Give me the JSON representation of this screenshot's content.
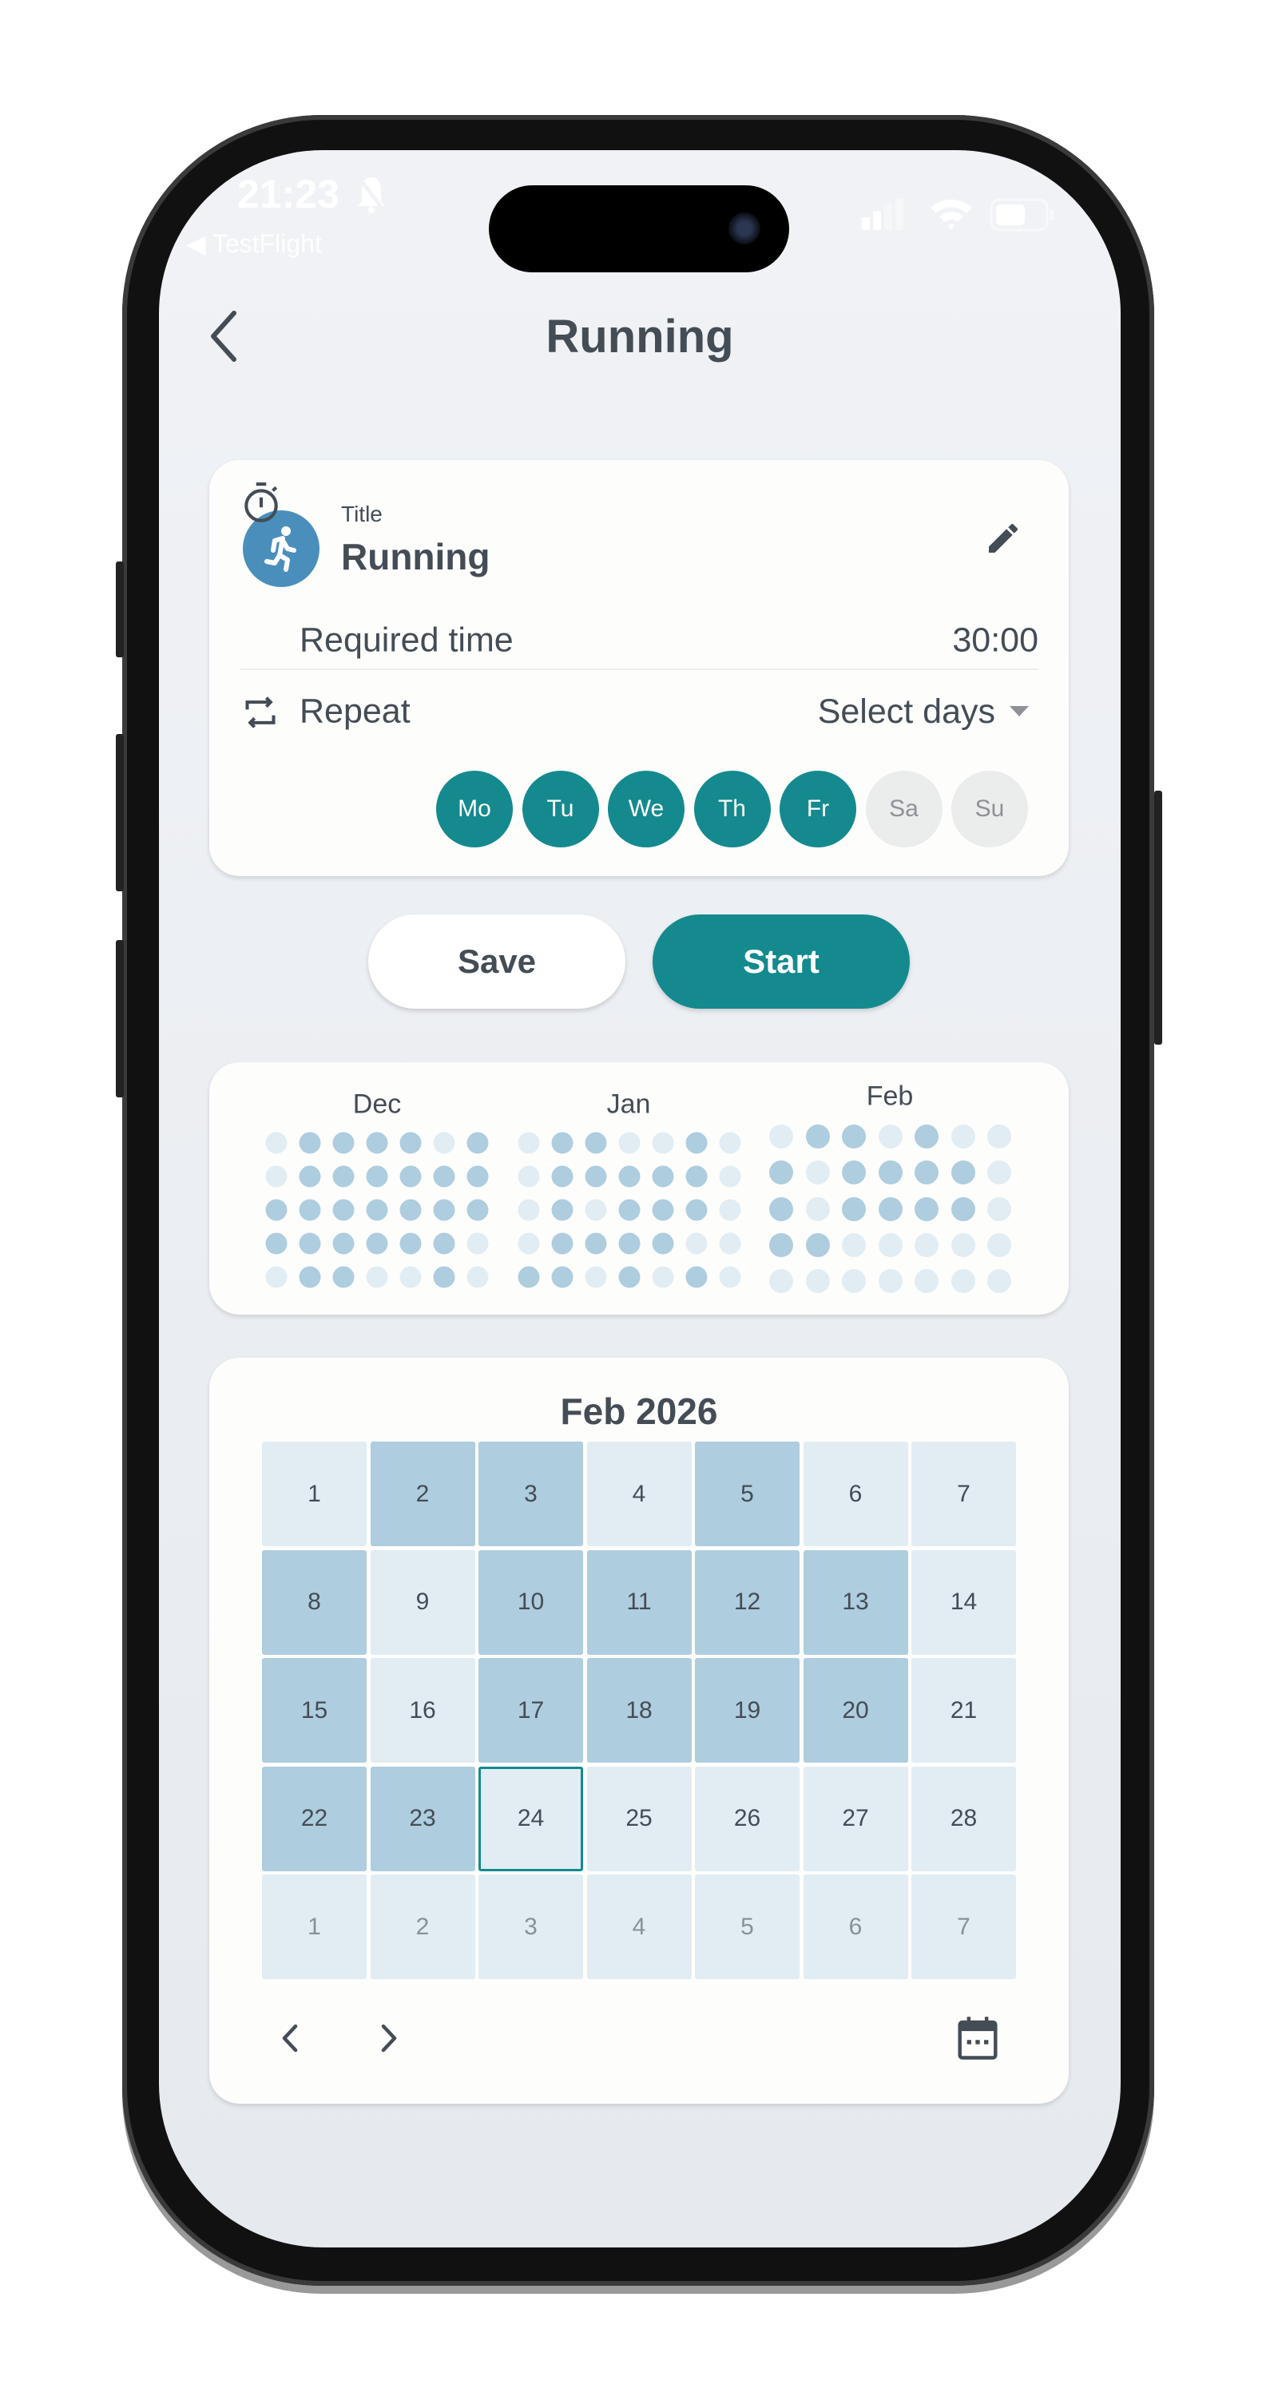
{
  "status_bar": {
    "time": "21:23",
    "back_app": "◀ TestFlight",
    "icons": [
      "bell-slash-icon",
      "signal-icon",
      "wifi-icon",
      "battery-icon"
    ]
  },
  "header": {
    "title": "Running",
    "back_icon": "chevron-left-icon"
  },
  "activity": {
    "title_label": "Title",
    "title": "Running",
    "icon": "running-person-icon",
    "icon_color": "#4a8fbb",
    "required_time_label": "Required time",
    "required_time": "30:00",
    "repeat_label": "Repeat",
    "repeat_select": "Select days",
    "days": [
      {
        "label": "Mo",
        "selected": true
      },
      {
        "label": "Tu",
        "selected": true
      },
      {
        "label": "We",
        "selected": true
      },
      {
        "label": "Th",
        "selected": true
      },
      {
        "label": "Fr",
        "selected": true
      },
      {
        "label": "Sa",
        "selected": false
      },
      {
        "label": "Su",
        "selected": false
      }
    ]
  },
  "actions": {
    "save": "Save",
    "start": "Start"
  },
  "colors": {
    "accent": "#148a8f",
    "done": "#aecddf",
    "not_done": "#e1edf3",
    "text": "#444c55"
  },
  "heatmap": {
    "months": [
      {
        "label": "Dec",
        "rows": [
          [
            0,
            1,
            1,
            1,
            1,
            0,
            1
          ],
          [
            0,
            1,
            1,
            1,
            1,
            1,
            1
          ],
          [
            1,
            1,
            1,
            1,
            1,
            1,
            1
          ],
          [
            1,
            1,
            1,
            1,
            1,
            1,
            0
          ],
          [
            0,
            1,
            1,
            0,
            0,
            1,
            0
          ]
        ]
      },
      {
        "label": "Jan",
        "rows": [
          [
            0,
            1,
            1,
            0,
            0,
            1,
            0
          ],
          [
            0,
            1,
            1,
            1,
            1,
            1,
            0
          ],
          [
            0,
            1,
            0,
            1,
            1,
            1,
            0
          ],
          [
            0,
            1,
            1,
            1,
            1,
            0,
            0
          ],
          [
            1,
            1,
            0,
            1,
            0,
            1,
            0
          ]
        ]
      },
      {
        "label": "Feb",
        "rows": [
          [
            0,
            1,
            1,
            0,
            1,
            0,
            0
          ],
          [
            1,
            0,
            1,
            1,
            1,
            1,
            0
          ],
          [
            1,
            0,
            1,
            1,
            1,
            1,
            0
          ],
          [
            1,
            1,
            0,
            0,
            0,
            0,
            0
          ],
          [
            0,
            0,
            0,
            0,
            0,
            0,
            0
          ]
        ]
      }
    ]
  },
  "calendar": {
    "title": "Feb 2026",
    "today": 24,
    "cells": [
      {
        "d": "1",
        "done": false
      },
      {
        "d": "2",
        "done": true
      },
      {
        "d": "3",
        "done": true
      },
      {
        "d": "4",
        "done": false
      },
      {
        "d": "5",
        "done": true
      },
      {
        "d": "6",
        "done": false
      },
      {
        "d": "7",
        "done": false
      },
      {
        "d": "8",
        "done": true
      },
      {
        "d": "9",
        "done": false
      },
      {
        "d": "10",
        "done": true
      },
      {
        "d": "11",
        "done": true
      },
      {
        "d": "12",
        "done": true
      },
      {
        "d": "13",
        "done": true
      },
      {
        "d": "14",
        "done": false
      },
      {
        "d": "15",
        "done": true
      },
      {
        "d": "16",
        "done": false
      },
      {
        "d": "17",
        "done": true
      },
      {
        "d": "18",
        "done": true
      },
      {
        "d": "19",
        "done": true
      },
      {
        "d": "20",
        "done": true
      },
      {
        "d": "21",
        "done": false
      },
      {
        "d": "22",
        "done": true
      },
      {
        "d": "23",
        "done": true
      },
      {
        "d": "24",
        "done": false,
        "today": true
      },
      {
        "d": "25",
        "done": false
      },
      {
        "d": "26",
        "done": false
      },
      {
        "d": "27",
        "done": false
      },
      {
        "d": "28",
        "done": false
      },
      {
        "d": "1",
        "done": false,
        "muted": true
      },
      {
        "d": "2",
        "done": false,
        "muted": true
      },
      {
        "d": "3",
        "done": false,
        "muted": true
      },
      {
        "d": "4",
        "done": false,
        "muted": true
      },
      {
        "d": "5",
        "done": false,
        "muted": true
      },
      {
        "d": "6",
        "done": false,
        "muted": true
      },
      {
        "d": "7",
        "done": false,
        "muted": true
      }
    ]
  }
}
